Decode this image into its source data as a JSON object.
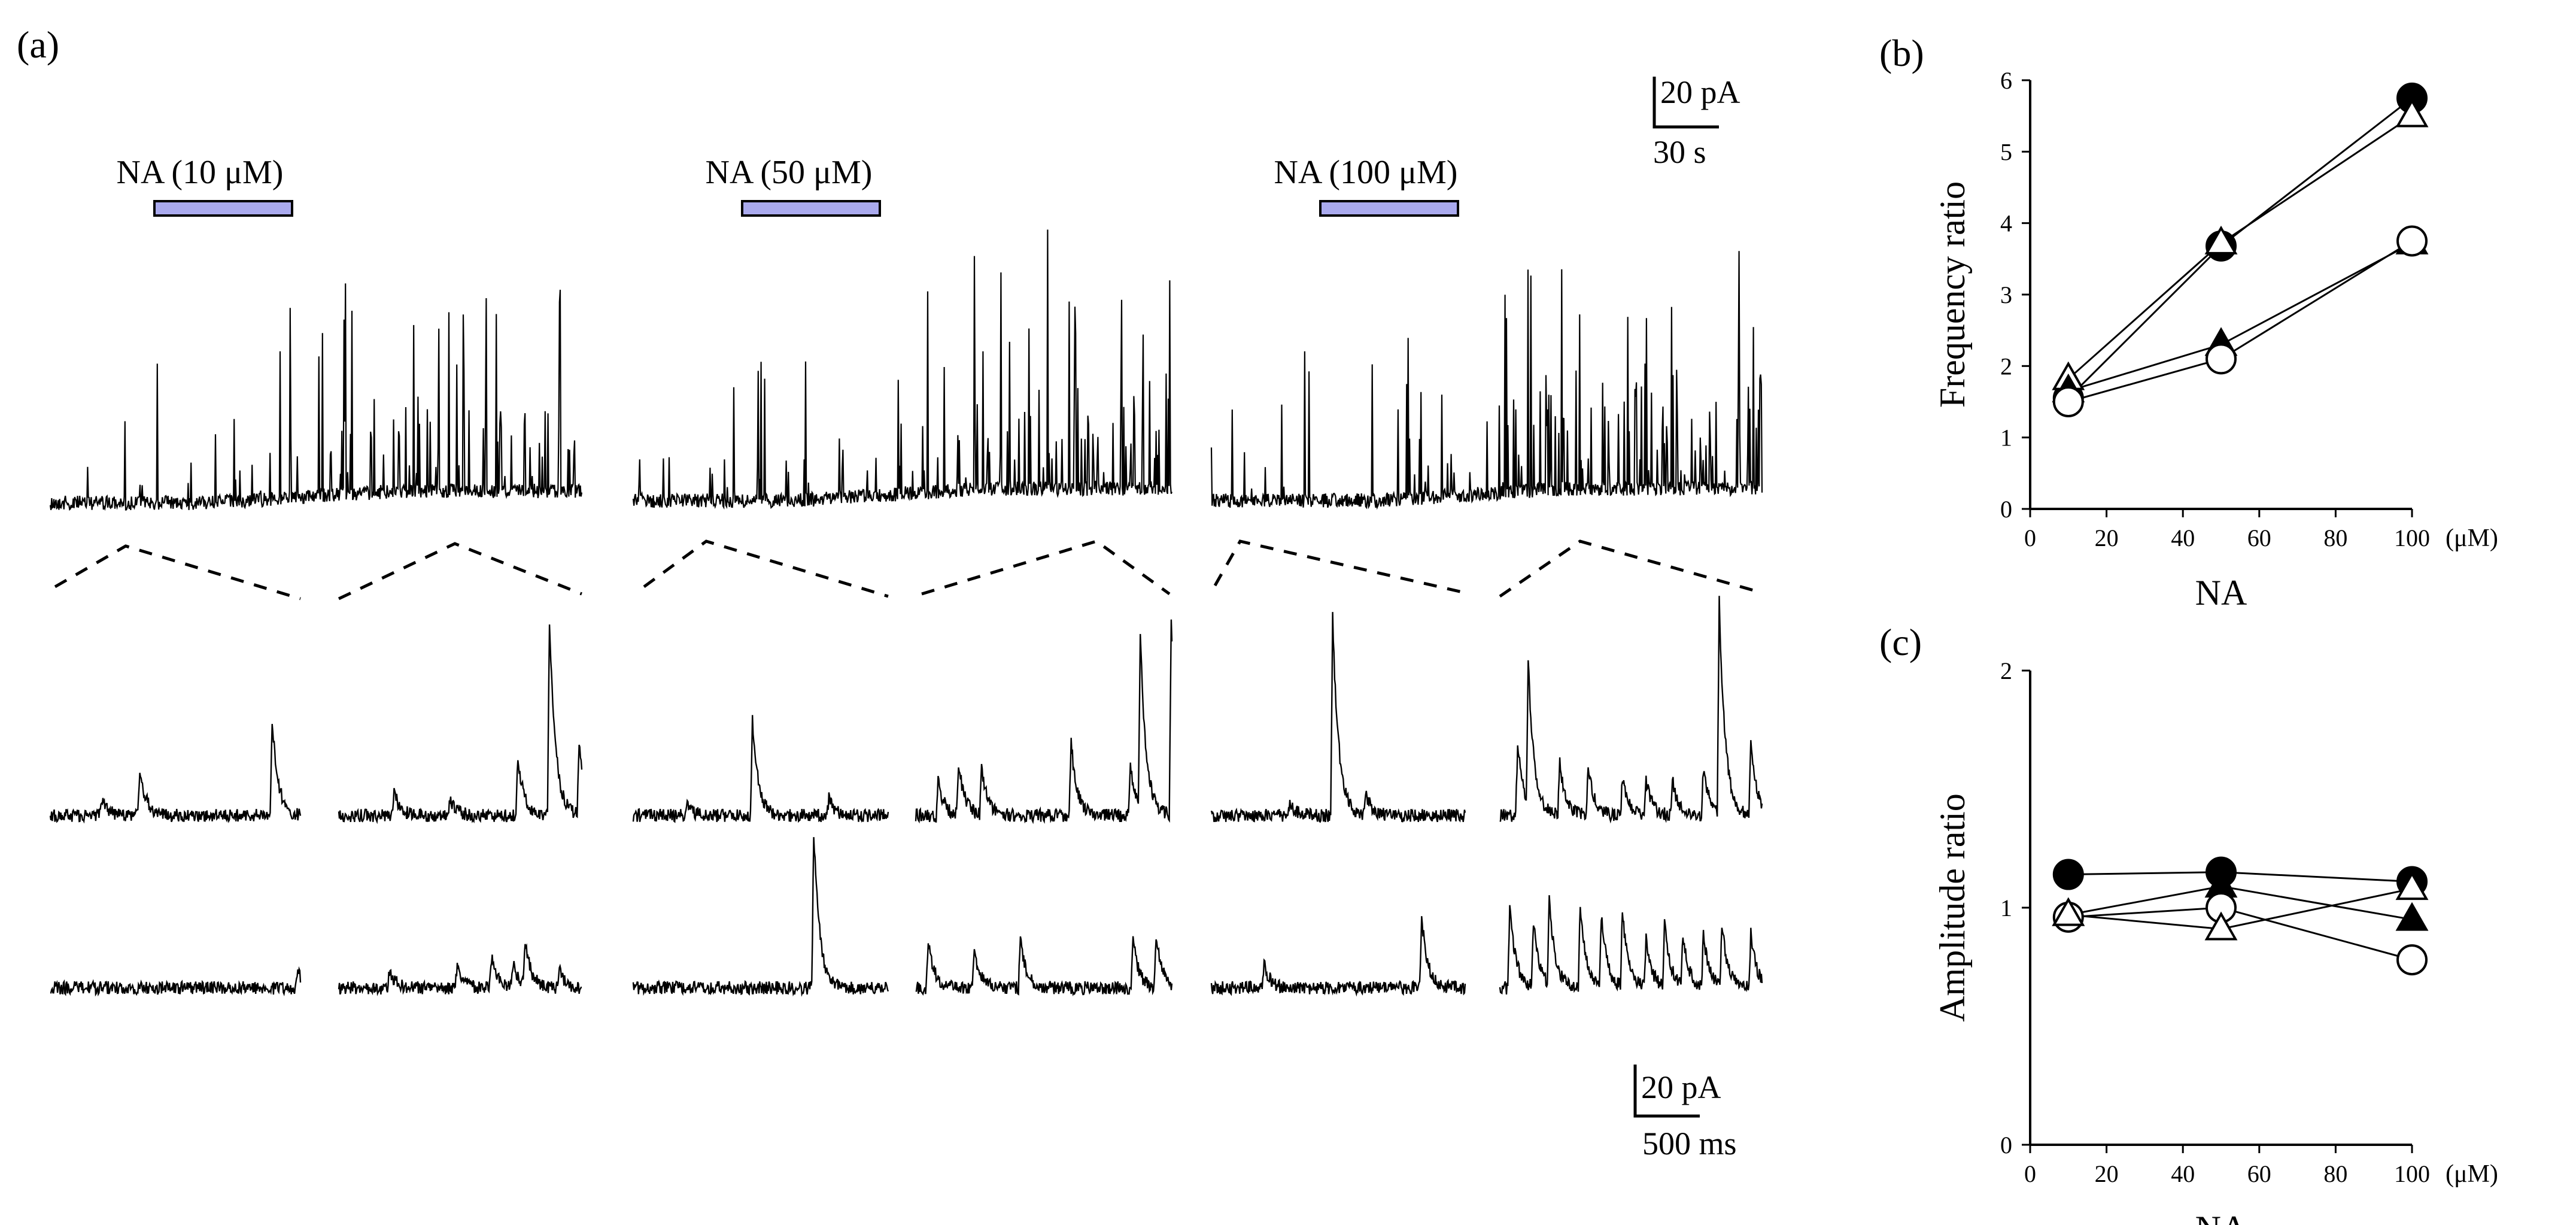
{
  "panel_labels": {
    "a": "(a)",
    "b": "(b)",
    "c": "(c)"
  },
  "drug_bars": [
    {
      "label": "NA (10 μM)",
      "color": "#aaaaee"
    },
    {
      "label": "NA (50 μM)",
      "color": "#aaaaee"
    },
    {
      "label": "NA (100 μM)",
      "color": "#aaaaee"
    }
  ],
  "scale_bars": {
    "top": {
      "amplitude": "20 pA",
      "time": "30 s"
    },
    "bottom": {
      "amplitude": "20 pA",
      "time": "500 ms"
    }
  },
  "chart_data": [
    {
      "type": "line",
      "panel": "(b)",
      "xlabel": "NA",
      "xunit": "(μM)",
      "ylabel": "Frequency ratio",
      "xlim": [
        0,
        100
      ],
      "ylim": [
        0,
        6
      ],
      "xticks": [
        "0",
        "20",
        "40",
        "60",
        "80",
        "100"
      ],
      "yticks": [
        "0",
        "1",
        "2",
        "3",
        "4",
        "5",
        "6"
      ],
      "x": [
        10,
        50,
        100
      ],
      "series": [
        {
          "marker": "filled-circle",
          "values": [
            1.55,
            3.68,
            5.75
          ]
        },
        {
          "marker": "open-triangle",
          "values": [
            1.82,
            3.72,
            5.5
          ]
        },
        {
          "marker": "filled-triangle",
          "values": [
            1.65,
            2.3,
            3.72
          ]
        },
        {
          "marker": "open-circle",
          "values": [
            1.5,
            2.1,
            3.75
          ]
        }
      ],
      "grid": false
    },
    {
      "type": "line",
      "panel": "(c)",
      "xlabel": "NA",
      "xunit": "(μM)",
      "ylabel": "Amplitude ratio",
      "xlim": [
        0,
        100
      ],
      "ylim": [
        0,
        2
      ],
      "xticks": [
        "0",
        "20",
        "40",
        "60",
        "80",
        "100"
      ],
      "yticks": [
        "0",
        "1",
        "2"
      ],
      "x": [
        10,
        50,
        100
      ],
      "series": [
        {
          "marker": "filled-circle",
          "values": [
            1.14,
            1.15,
            1.11
          ]
        },
        {
          "marker": "filled-triangle",
          "values": [
            0.97,
            1.09,
            0.95
          ]
        },
        {
          "marker": "open-circle",
          "values": [
            0.96,
            1.0,
            0.78
          ]
        },
        {
          "marker": "open-triangle",
          "values": [
            0.97,
            0.91,
            1.08
          ]
        }
      ],
      "grid": false
    }
  ]
}
